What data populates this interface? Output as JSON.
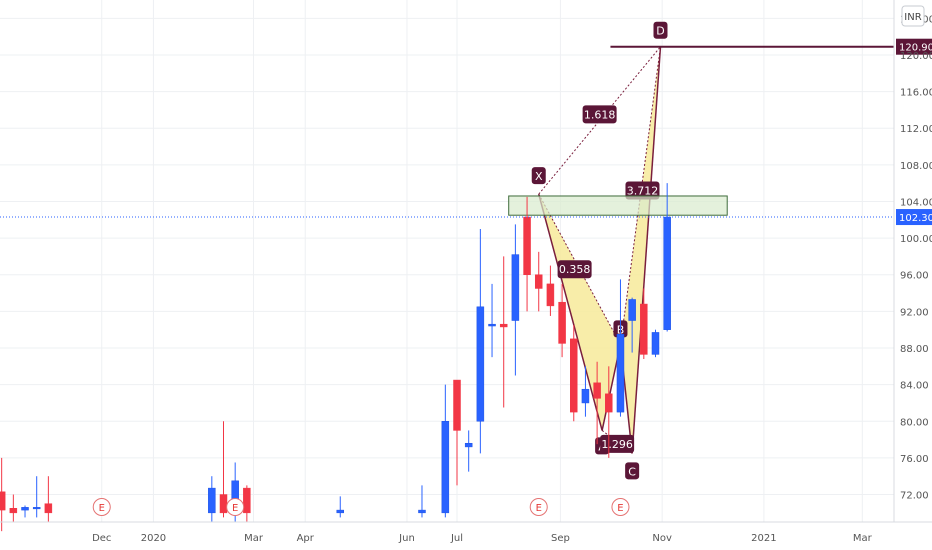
{
  "currency": "INR",
  "colors": {
    "up": "#2962ff",
    "up_border": "#1e53e5",
    "down": "#f23645",
    "pattern_fill": "#f7ea9a",
    "pattern_line": "#7a1f3d",
    "label_bg": "#5b1637",
    "zone_fill": "#d8ebcd",
    "zone_border": "#3d6b3a",
    "price_line": "#2962ff",
    "d_line": "#5b1637",
    "grid": "#eef0f3"
  },
  "chart_data": {
    "type": "candlestick",
    "title": "",
    "xlabel": "",
    "ylabel": "",
    "ylim": [
      69,
      126
    ],
    "x_range": [
      "2019-10-01",
      "2021-03-20"
    ],
    "y_ticks": [
      "124.00",
      "120.00",
      "116.00",
      "112.00",
      "108.00",
      "104.00",
      "100.00",
      "96.00",
      "92.00",
      "88.00",
      "84.00",
      "80.00",
      "76.00",
      "72.00"
    ],
    "x_ticks": [
      {
        "date": "2019-12-01",
        "label": "Dec"
      },
      {
        "date": "2020-01-01",
        "label": "2020"
      },
      {
        "date": "2020-03-01",
        "label": "Mar"
      },
      {
        "date": "2020-04-01",
        "label": "Apr"
      },
      {
        "date": "2020-06-01",
        "label": "Jun"
      },
      {
        "date": "2020-07-01",
        "label": "Jul"
      },
      {
        "date": "2020-09-01",
        "label": "Sep"
      },
      {
        "date": "2020-11-01",
        "label": "Nov"
      },
      {
        "date": "2021-01-01",
        "label": "2021"
      },
      {
        "date": "2021-03-01",
        "label": "Mar"
      }
    ],
    "candles": [
      {
        "date": "2019-10-02",
        "open": 72.3,
        "high": 76.0,
        "low": 68.0,
        "close": 70.3
      },
      {
        "date": "2019-10-09",
        "open": 70.5,
        "high": 72.0,
        "low": 69.0,
        "close": 70.0
      },
      {
        "date": "2019-10-16",
        "open": 70.3,
        "high": 70.8,
        "low": 69.5,
        "close": 70.6
      },
      {
        "date": "2019-10-23",
        "open": 70.6,
        "high": 74.0,
        "low": 69.5,
        "close": 70.6
      },
      {
        "date": "2019-10-30",
        "open": 71.0,
        "high": 74.0,
        "low": 69.0,
        "close": 70.0
      },
      {
        "date": "2020-02-05",
        "open": 70.0,
        "high": 74.0,
        "low": 69.0,
        "close": 72.7
      },
      {
        "date": "2020-02-12",
        "open": 72.0,
        "high": 80.0,
        "low": 69.5,
        "close": 70.0
      },
      {
        "date": "2020-02-19",
        "open": 70.0,
        "high": 75.5,
        "low": 69.0,
        "close": 73.5
      },
      {
        "date": "2020-02-26",
        "open": 72.7,
        "high": 73.0,
        "low": 69.0,
        "close": 70.0
      },
      {
        "date": "2020-04-22",
        "open": 70.0,
        "high": 71.8,
        "low": 69.5,
        "close": 70.3
      },
      {
        "date": "2020-06-10",
        "open": 70.0,
        "high": 73.0,
        "low": 69.5,
        "close": 70.3
      },
      {
        "date": "2020-06-24",
        "open": 70.0,
        "high": 84.0,
        "low": 69.5,
        "close": 80.0
      },
      {
        "date": "2020-07-01",
        "open": 84.5,
        "high": 84.5,
        "low": 73.0,
        "close": 79.0
      },
      {
        "date": "2020-07-08",
        "open": 77.2,
        "high": 79.0,
        "low": 74.5,
        "close": 77.6
      },
      {
        "date": "2020-07-15",
        "open": 80.0,
        "high": 101.0,
        "low": 76.5,
        "close": 92.5
      },
      {
        "date": "2020-07-22",
        "open": 90.4,
        "high": 95.0,
        "low": 87.0,
        "close": 90.6
      },
      {
        "date": "2020-07-29",
        "open": 90.6,
        "high": 98.0,
        "low": 81.5,
        "close": 90.3
      },
      {
        "date": "2020-08-05",
        "open": 91.0,
        "high": 101.5,
        "low": 85.0,
        "close": 98.2
      },
      {
        "date": "2020-08-12",
        "open": 102.3,
        "high": 104.5,
        "low": 92.0,
        "close": 96.0
      },
      {
        "date": "2020-08-19",
        "open": 96.0,
        "high": 98.5,
        "low": 92.0,
        "close": 94.5
      },
      {
        "date": "2020-08-26",
        "open": 95.0,
        "high": 97.0,
        "low": 91.5,
        "close": 92.6
      },
      {
        "date": "2020-09-02",
        "open": 93.0,
        "high": 95.0,
        "low": 87.0,
        "close": 88.5
      },
      {
        "date": "2020-09-09",
        "open": 89.0,
        "high": 90.5,
        "low": 80.0,
        "close": 81.0
      },
      {
        "date": "2020-09-16",
        "open": 82.0,
        "high": 86.0,
        "low": 80.5,
        "close": 83.5
      },
      {
        "date": "2020-09-23",
        "open": 84.2,
        "high": 86.5,
        "low": 77.5,
        "close": 82.5
      },
      {
        "date": "2020-09-30",
        "open": 83.0,
        "high": 86.0,
        "low": 76.0,
        "close": 81.0
      },
      {
        "date": "2020-10-07",
        "open": 81.0,
        "high": 95.5,
        "low": 80.5,
        "close": 89.5
      },
      {
        "date": "2020-10-14",
        "open": 91.0,
        "high": 93.5,
        "low": 87.5,
        "close": 93.3
      },
      {
        "date": "2020-10-21",
        "open": 92.8,
        "high": 94.5,
        "low": 86.8,
        "close": 87.3
      },
      {
        "date": "2020-10-28",
        "open": 87.3,
        "high": 90.0,
        "low": 87.0,
        "close": 89.7
      },
      {
        "date": "2020-11-04",
        "open": 90.0,
        "high": 106.0,
        "low": 89.8,
        "close": 102.3
      }
    ],
    "pattern": {
      "points": [
        {
          "label": "X",
          "date": "2020-08-19",
          "price": 104.8
        },
        {
          "label": "A",
          "date": "2020-09-26",
          "price": 79.0
        },
        {
          "label": "B",
          "date": "2020-10-07",
          "price": 88.4
        },
        {
          "label": "C",
          "date": "2020-10-14",
          "price": 76.5
        },
        {
          "label": "D",
          "date": "2020-10-31",
          "price": 120.9
        }
      ],
      "ratios": [
        {
          "label": "1.618",
          "between": "X-D"
        },
        {
          "label": "0.358",
          "between": "X-B"
        },
        {
          "label": "1.296",
          "between": "A-C"
        },
        {
          "label": "3.712",
          "between": "B-D"
        }
      ]
    },
    "zone": {
      "date_start": "2020-08-01",
      "date_end": "2020-12-10",
      "price_low": 102.5,
      "price_high": 104.6
    },
    "d_level": {
      "price": 120.9,
      "label": "120.90",
      "date_start": "2020-10-01"
    },
    "last_price": {
      "price": 102.3,
      "label": "102.30"
    },
    "earnings_markers": [
      {
        "date": "2019-12-01",
        "label": "E"
      },
      {
        "date": "2020-02-19",
        "label": "E"
      },
      {
        "date": "2020-08-19",
        "label": "E"
      },
      {
        "date": "2020-10-07",
        "label": "E"
      }
    ]
  }
}
